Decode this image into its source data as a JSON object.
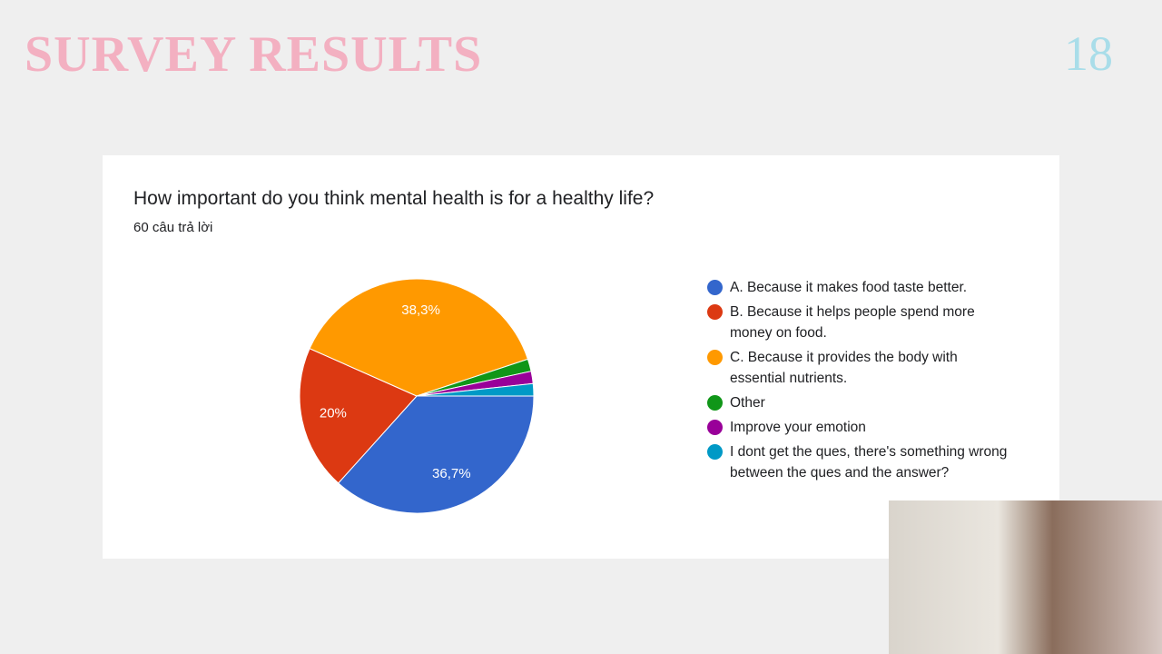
{
  "slide_title": "SURVEY RESULTS",
  "page_number": "18",
  "chart_data": {
    "type": "pie",
    "title": "How important do you think mental health is for a healthy life?",
    "subtitle": "60 câu trả lời",
    "categories": [
      "A. Because it makes food taste better.",
      "B. Because it helps people spend more money on food.",
      "C. Because it provides the body with essential nutrients.",
      "Other",
      "Improve your emotion",
      "I dont get the ques, there's something wrong between the ques and the answer?"
    ],
    "values": [
      36.7,
      20,
      38.3,
      1.7,
      1.7,
      1.7
    ],
    "value_labels": [
      "36,7%",
      "20%",
      "38,3%",
      null,
      null,
      null
    ],
    "colors": [
      "#3366cc",
      "#dc3912",
      "#ff9900",
      "#109618",
      "#990099",
      "#0099c6"
    ]
  }
}
